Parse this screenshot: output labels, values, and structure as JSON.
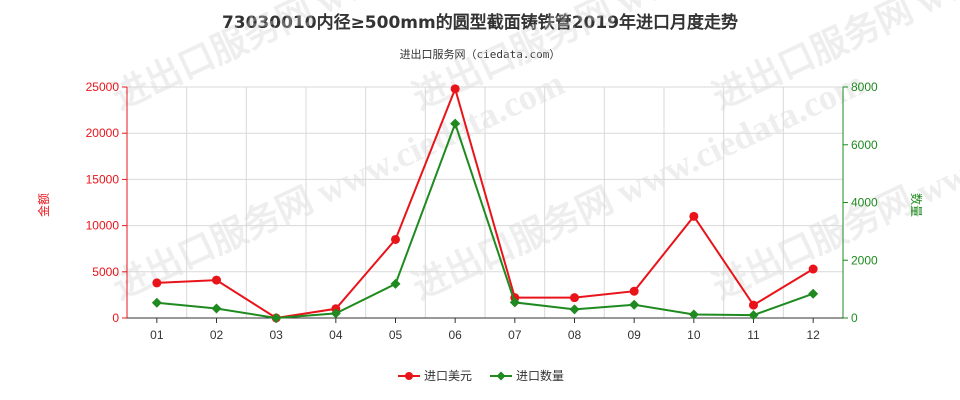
{
  "chart_data": {
    "type": "line",
    "title": "73030010内径≥500mm的圆型截面铸铁管2019年进口月度走势",
    "subtitle": "进出口服务网（ciedata.com）",
    "watermark": "进出口服务网 www.ciedata.com",
    "categories": [
      "01",
      "02",
      "03",
      "04",
      "05",
      "06",
      "07",
      "08",
      "09",
      "10",
      "11",
      "12"
    ],
    "ylabel_left": "金额",
    "ylabel_right": "数量",
    "ylim_left": [
      0,
      25000
    ],
    "ylim_right": [
      0,
      8000
    ],
    "yticks_left": [
      "0",
      "5000",
      "10000",
      "15000",
      "20000",
      "25000"
    ],
    "yticks_right": [
      "0",
      "2000",
      "4000",
      "6000",
      "8000"
    ],
    "series": [
      {
        "name": "进口美元",
        "axis": "left",
        "color": "#e8141a",
        "values": [
          3800,
          4100,
          0,
          1000,
          8500,
          24800,
          2200,
          2200,
          2900,
          11000,
          1400,
          5300
        ]
      },
      {
        "name": "进口数量",
        "axis": "right",
        "color": "#1f8a1f",
        "values": [
          530,
          330,
          0,
          160,
          1180,
          6730,
          540,
          300,
          460,
          120,
          100,
          840
        ]
      }
    ],
    "grid": true,
    "legend_position": "bottom-center",
    "colors": {
      "left_axis": "#e8141a",
      "right_axis": "#1f8a1f",
      "grid": "#d9d9d9"
    }
  }
}
